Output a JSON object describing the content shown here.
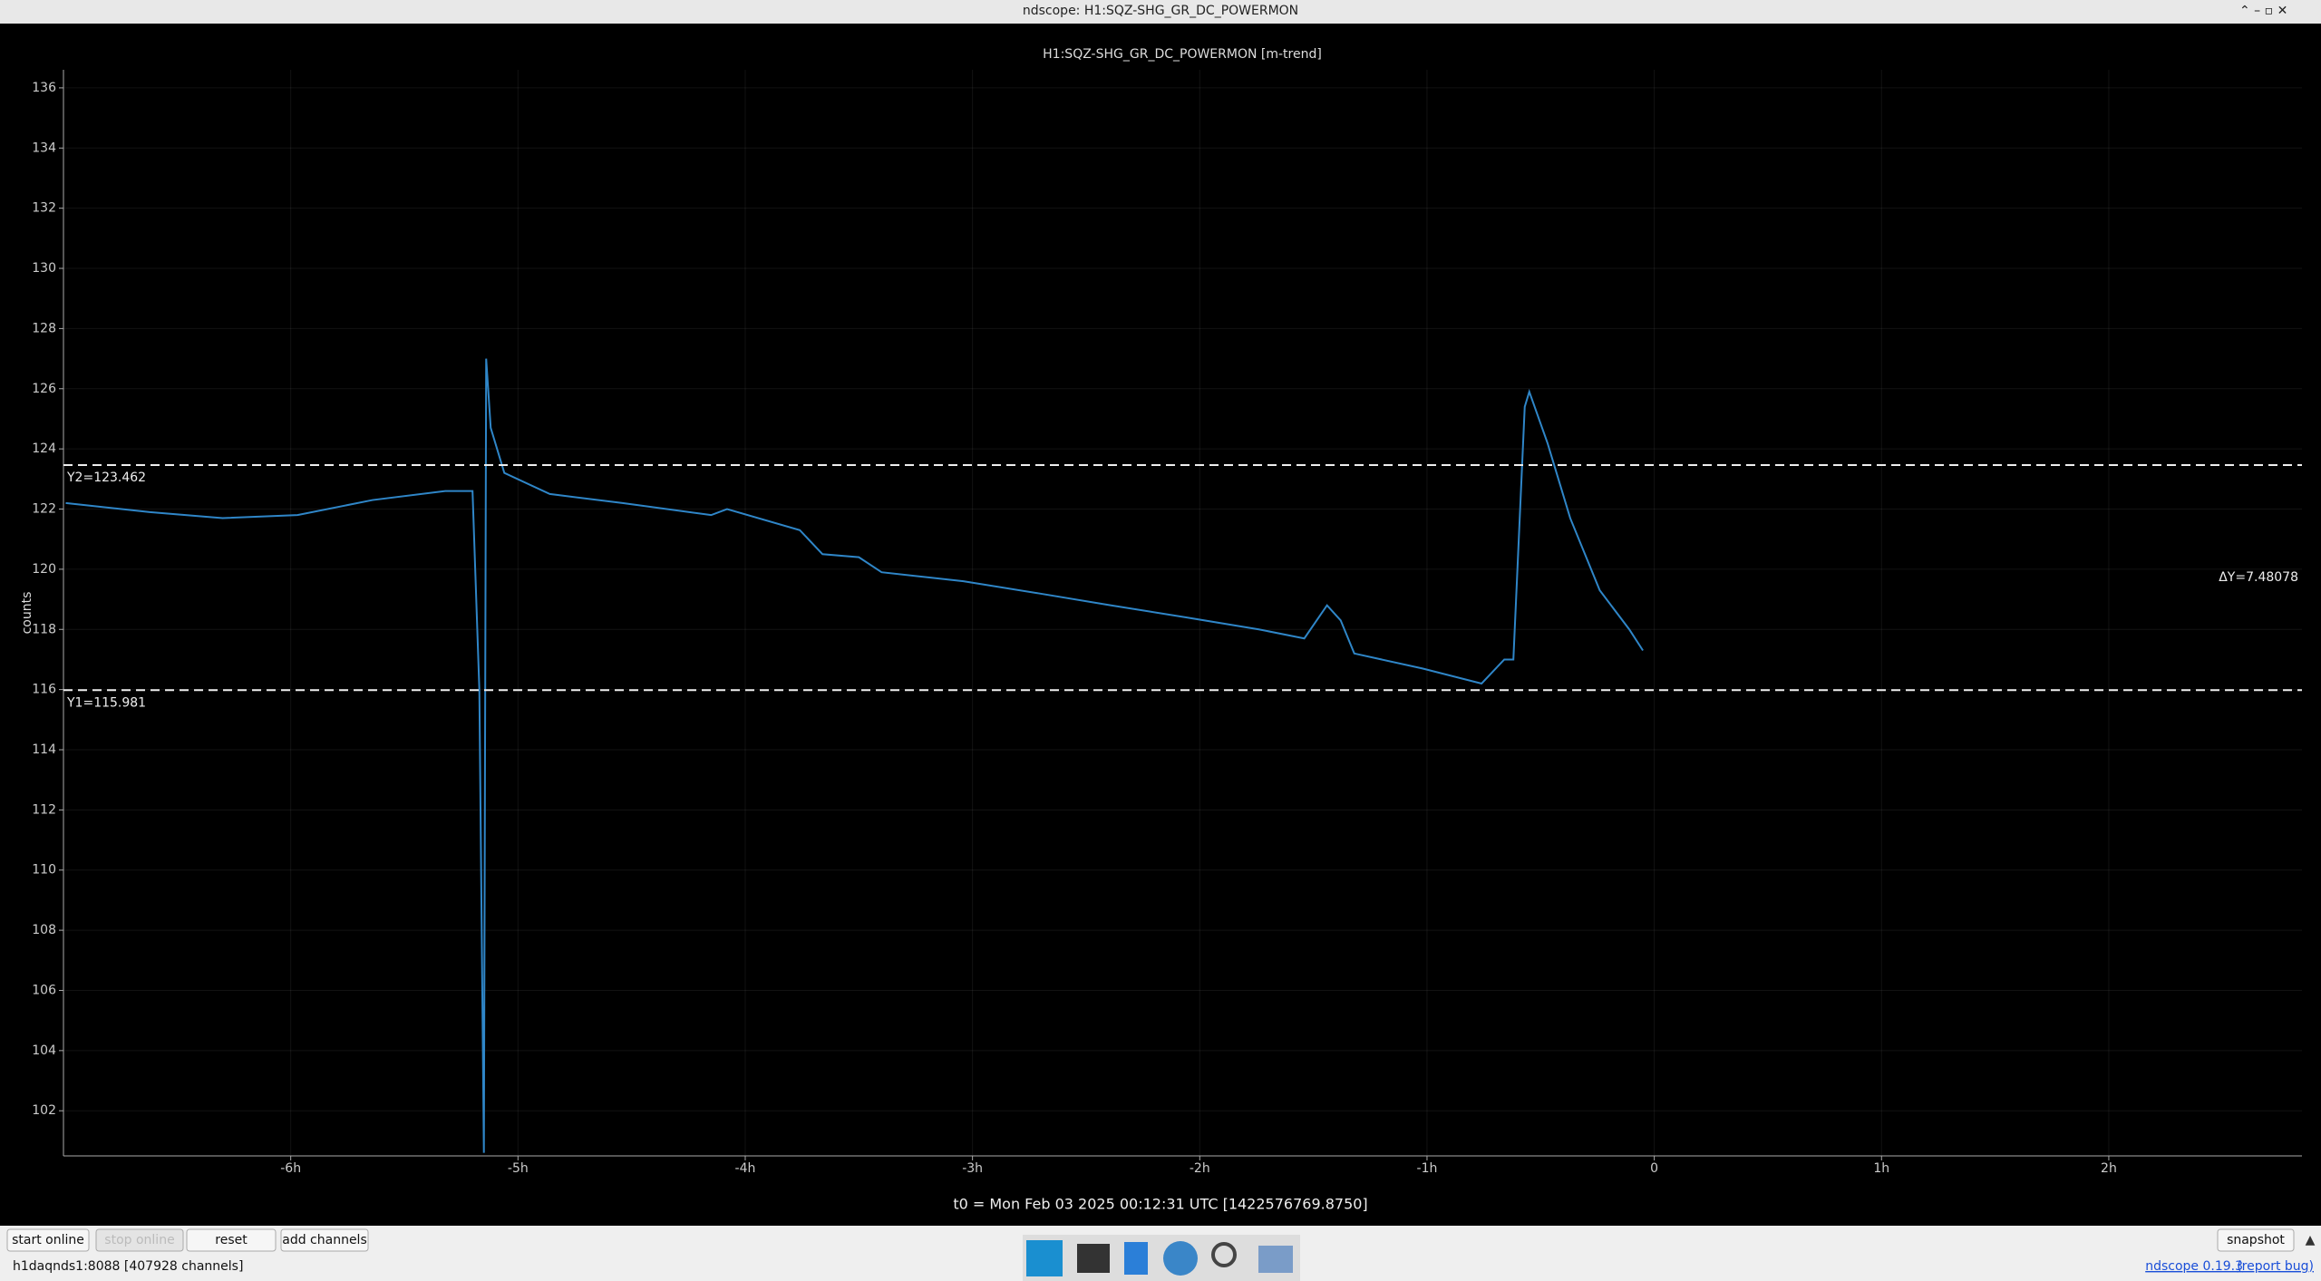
{
  "window": {
    "title": "ndscope: H1:SQZ-SHG_GR_DC_POWERMON"
  },
  "chart_data": {
    "type": "line",
    "title": "H1:SQZ-SHG_GR_DC_POWERMON [m-trend]",
    "y_label": "counts",
    "x_caption": "t0 = Mon Feb 03 2025 00:12:31 UTC [1422576769.8750]",
    "series": [
      {
        "name": "H1:SQZ-SHG_GR_DC_POWERMON",
        "color": "#2f86c8",
        "x": [
          -6.99,
          -6.62,
          -6.3,
          -5.97,
          -5.64,
          -5.32,
          -5.2,
          -5.17,
          -5.15,
          -5.14,
          -5.12,
          -5.06,
          -4.86,
          -4.54,
          -4.15,
          -4.08,
          -3.76,
          -3.66,
          -3.5,
          -3.4,
          -3.04,
          -2.71,
          -2.39,
          -2.06,
          -1.74,
          -1.54,
          -1.44,
          -1.38,
          -1.32,
          -1.02,
          -0.76,
          -0.66,
          -0.62,
          -0.57,
          -0.55,
          -0.47,
          -0.37,
          -0.24,
          -0.11,
          -0.05
        ],
        "values": [
          122.2,
          121.9,
          121.7,
          121.8,
          122.3,
          122.6,
          122.6,
          116,
          100.6,
          127.0,
          124.7,
          123.2,
          122.5,
          122.2,
          121.8,
          122.0,
          121.3,
          120.5,
          120.4,
          119.9,
          119.6,
          119.2,
          118.8,
          118.4,
          118.0,
          117.7,
          118.8,
          118.3,
          117.2,
          116.7,
          116.2,
          117.0,
          117.0,
          125.4,
          125.9,
          124.2,
          121.7,
          119.3,
          118.0,
          117.3
        ]
      }
    ],
    "xlim": [
      -7,
      2.85
    ],
    "ylim": [
      100.5,
      136.6
    ],
    "xticks": [
      {
        "value": -6,
        "label": "-6h"
      },
      {
        "value": -5,
        "label": "-5h"
      },
      {
        "value": -4,
        "label": "-4h"
      },
      {
        "value": -3,
        "label": "-3h"
      },
      {
        "value": -2,
        "label": "-2h"
      },
      {
        "value": -1,
        "label": "-1h"
      },
      0,
      {
        "value": 1,
        "label": "1h"
      },
      {
        "value": 2,
        "label": "2h"
      }
    ],
    "yticks": [
      102,
      104,
      106,
      108,
      110,
      112,
      114,
      116,
      118,
      120,
      122,
      124,
      126,
      128,
      130,
      132,
      134,
      136
    ],
    "grid": true,
    "cursors": [
      {
        "label": "Y2=123.462",
        "value": 123.462
      },
      {
        "label": "Y1=115.981",
        "value": 115.981
      }
    ],
    "delta_label": "ΔY=7.48078"
  },
  "buttons": [
    "start online",
    "stop online",
    "reset",
    "add channels",
    "snapshot"
  ],
  "status": "h1daqnds1:8088  [407928 channels]",
  "version": {
    "link": "ndscope 0.19.3",
    "report": "(report bug)"
  }
}
